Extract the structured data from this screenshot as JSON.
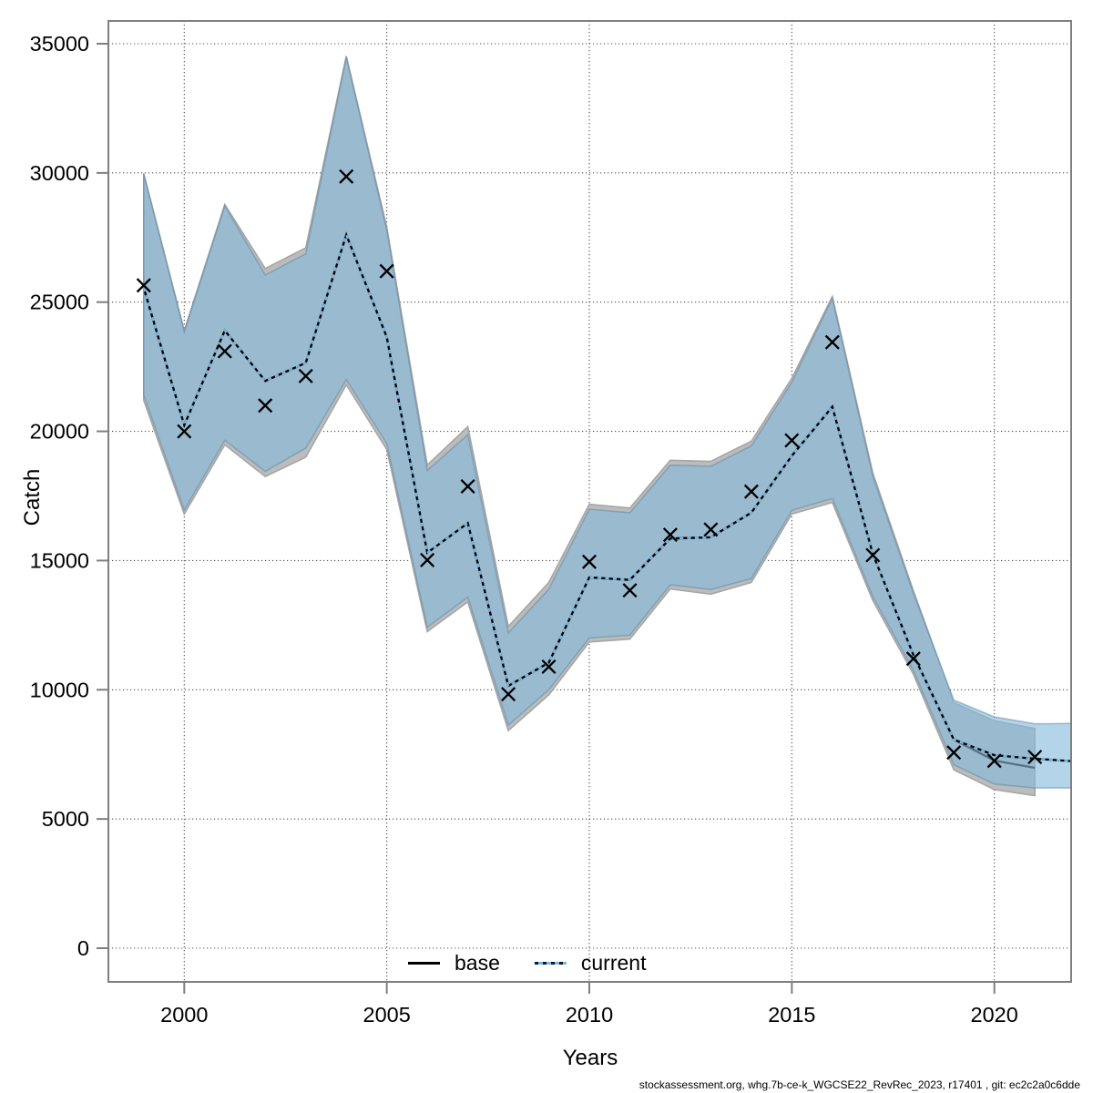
{
  "footer": "stockassessment.org, whg.7b-ce-k_WGCSE22_RevRec_2023, r17401 , git: ec2c2a0c6dde",
  "axes": {
    "x": {
      "label": "Years",
      "tick_labels": [
        "2000",
        "2005",
        "2010",
        "2015",
        "2020"
      ]
    },
    "y": {
      "label": "Catch",
      "tick_labels": [
        "0",
        "5000",
        "10000",
        "15000",
        "20000",
        "25000",
        "30000",
        "35000"
      ]
    }
  },
  "legend": {
    "base": {
      "label": "base",
      "style": "solid",
      "color": "#000000"
    },
    "current": {
      "label": "current",
      "style": "dashed",
      "color": "#7cb7e2"
    }
  },
  "colors": {
    "grid": "#4d4d4d",
    "frame": "#7f7f7f",
    "base_band_fill": "#bcbcbc",
    "base_band_edge": "#a6a6a6",
    "current_band_fill": "rgba(133,186,220,0.62)",
    "current_band_edge": "rgba(96,136,163,0.5)",
    "base_line": "#000000",
    "current_line_dark": "#000000",
    "current_line_light": "#7cb7e2",
    "marker": "#000000"
  },
  "chart_data": {
    "type": "line",
    "title": "",
    "xlabel": "Years",
    "ylabel": "Catch",
    "x_ticks": [
      2000,
      2005,
      2010,
      2015,
      2020
    ],
    "y_ticks": [
      0,
      5000,
      10000,
      15000,
      20000,
      25000,
      30000,
      35000
    ],
    "xlim": [
      1998.1,
      2021.9
    ],
    "ylim": [
      -1550,
      35900
    ],
    "grid": "dotted",
    "legend_position": "bottom-center-inside",
    "series": [
      {
        "name": "observed-catch",
        "style": "x-markers",
        "x": [
          1999,
          2000,
          2001,
          2002,
          2003,
          2004,
          2005,
          2006,
          2007,
          2008,
          2009,
          2010,
          2011,
          2012,
          2013,
          2014,
          2015,
          2016,
          2017,
          2018,
          2019,
          2020,
          2021
        ],
        "y": [
          25650,
          20000,
          23100,
          21000,
          22140,
          29860,
          26200,
          15020,
          17870,
          9830,
          10890,
          14950,
          13850,
          16000,
          16200,
          17670,
          19650,
          23450,
          15210,
          11200,
          7570,
          7250,
          7400
        ]
      },
      {
        "name": "base",
        "style": "solid",
        "x": [
          1999,
          2000,
          2001,
          2002,
          2003,
          2004,
          2005,
          2006,
          2007,
          2008,
          2009,
          2010,
          2011,
          2012,
          2013,
          2014,
          2015,
          2016,
          2017,
          2018,
          2019,
          2020,
          2021
        ],
        "y": [
          25550,
          20240,
          23900,
          21950,
          22650,
          27600,
          23650,
          15300,
          16450,
          10150,
          11050,
          14350,
          14250,
          15850,
          15900,
          16850,
          19050,
          20950,
          15250,
          11350,
          8070,
          7260,
          6980
        ],
        "band_upper": [
          29980,
          23900,
          28780,
          26300,
          27100,
          34520,
          27900,
          18700,
          20180,
          12450,
          14150,
          17180,
          17030,
          18880,
          18840,
          19620,
          22050,
          25220,
          18380,
          13830,
          9500,
          8800,
          8500
        ],
        "band_lower": [
          21200,
          16800,
          19480,
          18250,
          19000,
          21800,
          19300,
          12250,
          13400,
          8420,
          9800,
          11850,
          11960,
          13900,
          13700,
          14150,
          16800,
          17250,
          13450,
          10600,
          6900,
          6140,
          5900
        ]
      },
      {
        "name": "current",
        "style": "dashed",
        "x": [
          1999,
          2000,
          2001,
          2002,
          2003,
          2004,
          2005,
          2006,
          2007,
          2008,
          2009,
          2010,
          2011,
          2012,
          2013,
          2014,
          2015,
          2016,
          2017,
          2018,
          2019,
          2020,
          2021,
          2022
        ],
        "y": [
          25550,
          20240,
          23900,
          21950,
          22650,
          27600,
          23650,
          15300,
          16450,
          10150,
          11050,
          14350,
          14250,
          15850,
          15900,
          16850,
          19050,
          20950,
          15250,
          11350,
          8070,
          7470,
          7330,
          7230
        ],
        "band_upper": [
          29950,
          23850,
          28730,
          26050,
          26870,
          34470,
          27800,
          18490,
          19870,
          12200,
          13890,
          16990,
          16850,
          18690,
          18650,
          19440,
          21900,
          25150,
          18250,
          13740,
          9600,
          8950,
          8680,
          8700
        ],
        "band_lower": [
          21400,
          16950,
          19650,
          18450,
          19350,
          22000,
          19530,
          12420,
          13580,
          8630,
          10000,
          12000,
          12110,
          14060,
          13880,
          14300,
          16940,
          17400,
          13600,
          10750,
          7100,
          6350,
          6200,
          6200
        ]
      }
    ]
  }
}
